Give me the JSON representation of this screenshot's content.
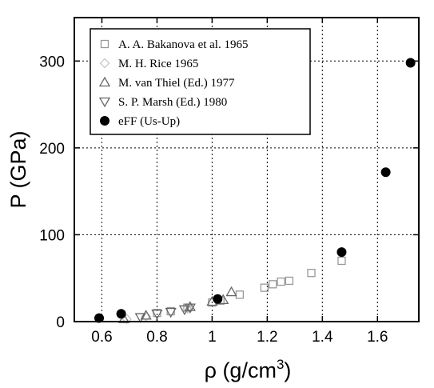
{
  "chart_data": {
    "type": "scatter",
    "xlabel": "ρ (g/cm",
    "xlabel_sup": "3",
    "xlabel_end": ")",
    "ylabel": "P (GPa)",
    "xlim": [
      0.5,
      1.75
    ],
    "ylim": [
      0,
      350
    ],
    "xticks": [
      0.6,
      0.8,
      1.0,
      1.2,
      1.4,
      1.6
    ],
    "xtick_labels": [
      "0.6",
      "0.8",
      "1",
      "1.2",
      "1.4",
      "1.6"
    ],
    "yticks": [
      0,
      100,
      200,
      300
    ],
    "ytick_labels": [
      "0",
      "100",
      "200",
      "300"
    ],
    "grid": true,
    "legend_position": "top-left",
    "series": [
      {
        "name": "A. A. Bakanova et al. 1965",
        "marker": "square-open",
        "color": "#999999",
        "points": [
          [
            0.8,
            10
          ],
          [
            0.85,
            12
          ],
          [
            0.91,
            16
          ],
          [
            1.0,
            22
          ],
          [
            1.03,
            24
          ],
          [
            1.1,
            31
          ],
          [
            1.19,
            39
          ],
          [
            1.22,
            43
          ],
          [
            1.25,
            46
          ],
          [
            1.28,
            47
          ],
          [
            1.36,
            56
          ],
          [
            1.47,
            70
          ]
        ]
      },
      {
        "name": "M. H. Rice 1965",
        "marker": "diamond-open",
        "color": "#c8c8c8",
        "points": [
          [
            0.69,
            3
          ],
          [
            0.76,
            6
          ],
          [
            0.91,
            15
          ]
        ]
      },
      {
        "name": "M. van Thiel (Ed.) 1977",
        "marker": "triangle-up-open",
        "color": "#666666",
        "points": [
          [
            0.68,
            3
          ],
          [
            0.76,
            7
          ],
          [
            0.92,
            17
          ],
          [
            1.0,
            23
          ],
          [
            1.04,
            25
          ],
          [
            1.07,
            34
          ]
        ]
      },
      {
        "name": "S. P. Marsh (Ed.) 1980",
        "marker": "triangle-down-open",
        "color": "#666666",
        "points": [
          [
            0.74,
            5
          ],
          [
            0.8,
            9
          ],
          [
            0.85,
            11
          ],
          [
            0.9,
            14
          ],
          [
            0.92,
            16
          ]
        ]
      },
      {
        "name": "eFF (Us-Up)",
        "marker": "circle-filled",
        "color": "#000000",
        "points": [
          [
            0.59,
            4
          ],
          [
            0.67,
            9
          ],
          [
            1.02,
            26
          ],
          [
            1.47,
            80
          ],
          [
            1.63,
            172
          ],
          [
            1.72,
            298
          ]
        ]
      }
    ]
  }
}
